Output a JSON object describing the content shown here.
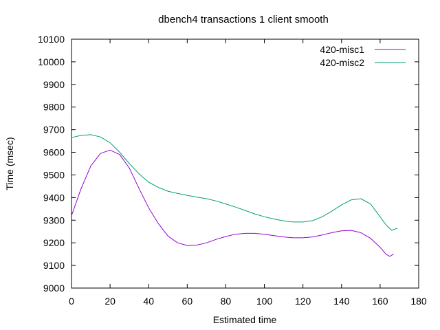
{
  "chart_data": {
    "type": "line",
    "title": "dbench4 transactions 1 client smooth",
    "xlabel": "Estimated time",
    "ylabel": "Time (msec)",
    "xlim": [
      0,
      180
    ],
    "ylim": [
      9000,
      10100
    ],
    "xticks": [
      "0",
      "20",
      "40",
      "60",
      "80",
      "100",
      "120",
      "140",
      "160",
      "180"
    ],
    "yticks": [
      "9000",
      "9100",
      "9200",
      "9300",
      "9400",
      "9500",
      "9600",
      "9700",
      "9800",
      "9900",
      "10000",
      "10100"
    ],
    "grid": false,
    "legend_position": "top-right",
    "series": [
      {
        "name": "420-misc1",
        "color": "#9400d3",
        "x": [
          0,
          5,
          10,
          15,
          20,
          25,
          30,
          35,
          40,
          45,
          50,
          55,
          60,
          65,
          70,
          75,
          80,
          85,
          90,
          95,
          100,
          105,
          110,
          115,
          120,
          125,
          130,
          135,
          140,
          145,
          150,
          155,
          160,
          163,
          165,
          167
        ],
        "y": [
          9320,
          9440,
          9540,
          9595,
          9610,
          9590,
          9530,
          9440,
          9355,
          9285,
          9230,
          9200,
          9188,
          9190,
          9200,
          9215,
          9228,
          9238,
          9242,
          9242,
          9238,
          9232,
          9226,
          9222,
          9222,
          9226,
          9235,
          9245,
          9253,
          9255,
          9245,
          9220,
          9180,
          9150,
          9140,
          9150
        ]
      },
      {
        "name": "420-misc2",
        "color": "#009e73",
        "x": [
          0,
          5,
          10,
          15,
          20,
          25,
          30,
          35,
          40,
          45,
          50,
          55,
          60,
          65,
          70,
          75,
          80,
          85,
          90,
          95,
          100,
          105,
          110,
          115,
          120,
          125,
          130,
          135,
          140,
          145,
          150,
          155,
          160,
          163,
          166,
          169
        ],
        "y": [
          9665,
          9675,
          9678,
          9668,
          9642,
          9600,
          9550,
          9505,
          9468,
          9445,
          9428,
          9418,
          9410,
          9402,
          9395,
          9385,
          9372,
          9358,
          9343,
          9328,
          9315,
          9305,
          9297,
          9292,
          9292,
          9298,
          9315,
          9340,
          9368,
          9390,
          9395,
          9372,
          9315,
          9280,
          9255,
          9265
        ]
      }
    ]
  }
}
